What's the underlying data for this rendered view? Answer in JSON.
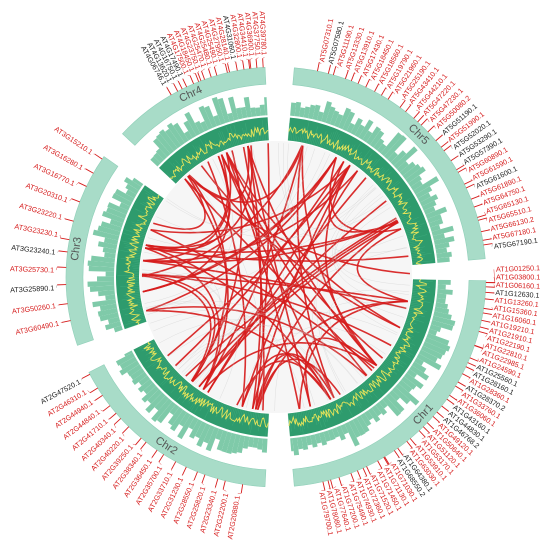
{
  "colors": {
    "ring": "#a8dcc8",
    "ring_edge": "#8fcfb8",
    "histogram": "#7fcaa9",
    "density_bg": "#2e9b6d",
    "density_line": "#e6e35a",
    "link": "#d61c1c",
    "link_gray": "#c8c8c8",
    "tick": "#d61c1c",
    "label_red": "#d61c1c",
    "label_black": "#222222",
    "chr_text": "#555555"
  },
  "chromosomes": [
    {
      "id": "chr1",
      "label": "Chr1"
    },
    {
      "id": "chr2",
      "label": "Chr2"
    },
    {
      "id": "chr3",
      "label": "Chr3"
    },
    {
      "id": "chr4",
      "label": "Chr4"
    },
    {
      "id": "chr5",
      "label": "Chr5"
    }
  ],
  "genes": {
    "chr1": [
      {
        "name": "AT1G01250.1",
        "color": "red"
      },
      {
        "name": "AT1G03800.1",
        "color": "red"
      },
      {
        "name": "AT1G06160.1",
        "color": "red"
      },
      {
        "name": "AT1G12630.1",
        "color": "black"
      },
      {
        "name": "AT1G13260.1",
        "color": "red"
      },
      {
        "name": "AT1G15360.1",
        "color": "red"
      },
      {
        "name": "AT1G16060.1",
        "color": "red"
      },
      {
        "name": "AT1G19210.1",
        "color": "red"
      },
      {
        "name": "AT1G21910.1",
        "color": "red"
      },
      {
        "name": "AT1G22190.1",
        "color": "red"
      },
      {
        "name": "AT1G22810.1",
        "color": "red"
      },
      {
        "name": "AT1G22985.1",
        "color": "red"
      },
      {
        "name": "AT1G24590.1",
        "color": "red"
      },
      {
        "name": "AT1G25560.1",
        "color": "black"
      },
      {
        "name": "AT1G28160.1",
        "color": "black"
      },
      {
        "name": "AT1G28360.1",
        "color": "red"
      },
      {
        "name": "AT1G28370.2",
        "color": "black"
      },
      {
        "name": "AT1G33760.1",
        "color": "red"
      },
      {
        "name": "AT1G36060.1",
        "color": "red"
      },
      {
        "name": "AT1G43160.1",
        "color": "black"
      },
      {
        "name": "AT1G44830.1",
        "color": "black"
      },
      {
        "name": "AT1G46768.2",
        "color": "black"
      },
      {
        "name": "AT1G49120.1",
        "color": "red"
      },
      {
        "name": "AT1G50640.1",
        "color": "red"
      },
      {
        "name": "AT1G51120.1",
        "color": "red"
      },
      {
        "name": "AT1G53170.1",
        "color": "red"
      },
      {
        "name": "AT1G53910.1",
        "color": "red"
      },
      {
        "name": "AT1G63030.1",
        "color": "red"
      },
      {
        "name": "AT1G64380.1",
        "color": "black"
      },
      {
        "name": "AT1G68550.2",
        "color": "black"
      },
      {
        "name": "AT1G71030.1",
        "color": "red"
      },
      {
        "name": "AT1G71130.1",
        "color": "red"
      },
      {
        "name": "AT1G71450.1",
        "color": "red"
      },
      {
        "name": "AT1G71520.1",
        "color": "red"
      },
      {
        "name": "AT1G72360.1",
        "color": "red"
      },
      {
        "name": "AT1G74930.1",
        "color": "red"
      },
      {
        "name": "AT1G75490.1",
        "color": "red"
      },
      {
        "name": "AT1G77200.1",
        "color": "red"
      },
      {
        "name": "AT1G77640.1",
        "color": "red"
      },
      {
        "name": "AT1G78080.1",
        "color": "red"
      },
      {
        "name": "AT1G79700.1",
        "color": "red"
      }
    ],
    "chr2": [
      {
        "name": "AT2G20880.1",
        "color": "red"
      },
      {
        "name": "AT2G22200.1",
        "color": "red"
      },
      {
        "name": "AT2G23340.1",
        "color": "red"
      },
      {
        "name": "AT2G25820.1",
        "color": "red"
      },
      {
        "name": "AT2G28550.1",
        "color": "red"
      },
      {
        "name": "AT2G31230.1",
        "color": "red"
      },
      {
        "name": "AT2G33710.1",
        "color": "red"
      },
      {
        "name": "AT2G35700.1",
        "color": "red"
      },
      {
        "name": "AT2G36450.1",
        "color": "red"
      },
      {
        "name": "AT2G38340.1",
        "color": "red"
      },
      {
        "name": "AT2G39250.1",
        "color": "red"
      },
      {
        "name": "AT2G40220.1",
        "color": "red"
      },
      {
        "name": "AT2G40340.1",
        "color": "red"
      },
      {
        "name": "AT2G41710.1",
        "color": "red"
      },
      {
        "name": "AT2G44840.1",
        "color": "red"
      },
      {
        "name": "AT2G44940.1",
        "color": "red"
      },
      {
        "name": "AT2G46310.1",
        "color": "red"
      },
      {
        "name": "AT2G47520.1",
        "color": "black"
      }
    ],
    "chr3": [
      {
        "name": "AT3G15210.1",
        "color": "red"
      },
      {
        "name": "AT3G16280.1",
        "color": "red"
      },
      {
        "name": "AT3G16770.1",
        "color": "red"
      },
      {
        "name": "AT3G20310.1",
        "color": "red"
      },
      {
        "name": "AT3G23220.1",
        "color": "red"
      },
      {
        "name": "AT3G23230.1",
        "color": "red"
      },
      {
        "name": "AT3G23240.1",
        "color": "black"
      },
      {
        "name": "AT3G25730.1",
        "color": "red"
      },
      {
        "name": "AT3G25890.1",
        "color": "black"
      },
      {
        "name": "AT3G50260.1",
        "color": "red"
      },
      {
        "name": "AT3G60490.1",
        "color": "red"
      }
    ],
    "chr4": [
      {
        "name": "AT4G06746.1",
        "color": "black"
      },
      {
        "name": "AT4G13620.1",
        "color": "black"
      },
      {
        "name": "AT4G16750.1",
        "color": "black"
      },
      {
        "name": "AT4G17490.1",
        "color": "black"
      },
      {
        "name": "AT4G17500.1",
        "color": "red"
      },
      {
        "name": "AT4G18450.1",
        "color": "red"
      },
      {
        "name": "AT4G23750.1",
        "color": "red"
      },
      {
        "name": "AT4G25470.1",
        "color": "red"
      },
      {
        "name": "AT4G25480.1",
        "color": "red"
      },
      {
        "name": "AT4G25490.1",
        "color": "red"
      },
      {
        "name": "AT4G27950.1",
        "color": "red"
      },
      {
        "name": "AT4G28140.1",
        "color": "red"
      },
      {
        "name": "AT4G31060.1",
        "color": "black"
      },
      {
        "name": "AT4G32800.1",
        "color": "red"
      },
      {
        "name": "AT4G34410.1",
        "color": "red"
      },
      {
        "name": "AT4G36900.1",
        "color": "red"
      },
      {
        "name": "AT4G37750.1",
        "color": "red"
      },
      {
        "name": "AT4G39780.1",
        "color": "red"
      }
    ],
    "chr5": [
      {
        "name": "AT5G07310.1",
        "color": "red"
      },
      {
        "name": "AT5G07580.1",
        "color": "black"
      },
      {
        "name": "AT5G11190.1",
        "color": "red"
      },
      {
        "name": "AT5G13330.1",
        "color": "red"
      },
      {
        "name": "AT5G13910.1",
        "color": "red"
      },
      {
        "name": "AT5G17430.1",
        "color": "red"
      },
      {
        "name": "AT5G18450.1",
        "color": "red"
      },
      {
        "name": "AT5G18560.1",
        "color": "red"
      },
      {
        "name": "AT5G19790.1",
        "color": "red"
      },
      {
        "name": "AT5G21960.1",
        "color": "red"
      },
      {
        "name": "AT5G25190.1",
        "color": "red"
      },
      {
        "name": "AT5G43410.1",
        "color": "red"
      },
      {
        "name": "AT5G44210.1",
        "color": "red"
      },
      {
        "name": "AT5G47220.1",
        "color": "red"
      },
      {
        "name": "AT5G47230.1",
        "color": "red"
      },
      {
        "name": "AT5G50080.2",
        "color": "red"
      },
      {
        "name": "AT5G51190.1",
        "color": "black"
      },
      {
        "name": "AT5G51990.1",
        "color": "red"
      },
      {
        "name": "AT5G52020.1",
        "color": "black"
      },
      {
        "name": "AT5G53290.1",
        "color": "black"
      },
      {
        "name": "AT5G57390.1",
        "color": "black"
      },
      {
        "name": "AT5G60890.1",
        "color": "red"
      },
      {
        "name": "AT5G61590.1",
        "color": "red"
      },
      {
        "name": "AT5G61600.1",
        "color": "black"
      },
      {
        "name": "AT5G61890.1",
        "color": "red"
      },
      {
        "name": "AT5G64750.1",
        "color": "red"
      },
      {
        "name": "AT5G65130.1",
        "color": "red"
      },
      {
        "name": "AT5G65510.1",
        "color": "red"
      },
      {
        "name": "AT5G66130.2",
        "color": "red"
      },
      {
        "name": "AT5G67180.1",
        "color": "red"
      },
      {
        "name": "AT5G67190.1",
        "color": "black"
      }
    ]
  }
}
